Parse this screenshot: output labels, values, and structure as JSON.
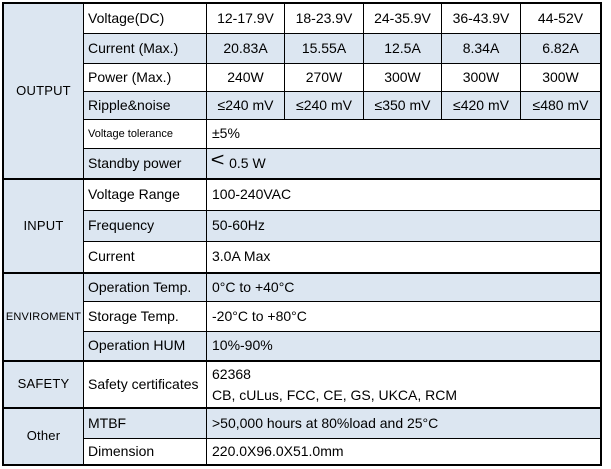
{
  "colors": {
    "fill_blue": "#dce6f1",
    "border": "#000000",
    "text": "#000000",
    "background": "#ffffff"
  },
  "table": {
    "sections": [
      {
        "title": "OUTPUT",
        "rows": [
          {
            "label": "Voltage(DC)",
            "values": [
              "12-17.9V",
              "18-23.9V",
              "24-35.9V",
              "36-43.9V",
              "44-52V"
            ]
          },
          {
            "label": "Current (Max.)",
            "values": [
              "20.83A",
              "15.55A",
              "12.5A",
              "8.34A",
              "6.82A"
            ]
          },
          {
            "label": "Power (Max.)",
            "values": [
              "240W",
              "270W",
              "300W",
              "300W",
              "300W"
            ]
          },
          {
            "label": "Ripple&noise",
            "values": [
              "≤240 mV",
              "≤240 mV",
              "≤350 mV",
              "≤420 mV",
              "≤480 mV"
            ]
          },
          {
            "label": "Voltage tolerance",
            "value": "±5%"
          },
          {
            "label": "Standby power",
            "value_symbol": "<",
            "value": "0.5 W"
          }
        ]
      },
      {
        "title": "INPUT",
        "rows": [
          {
            "label": "Voltage Range",
            "value": "100-240VAC"
          },
          {
            "label": "Frequency",
            "value": "50-60Hz"
          },
          {
            "label": "Current",
            "value": "3.0A Max"
          }
        ]
      },
      {
        "title": "ENVIROMENT",
        "rows": [
          {
            "label": "Operation Temp.",
            "value": "0°C to +40°C"
          },
          {
            "label": "Storage Temp.",
            "value": "-20°C to +80°C"
          },
          {
            "label": "Operation HUM",
            "value": "10%-90%"
          }
        ]
      },
      {
        "title": "SAFETY",
        "rows": [
          {
            "label": "Safety certificates",
            "value_line1": "62368",
            "value_line2": "CB, cULus, FCC, CE, GS, UKCA, RCM"
          }
        ]
      },
      {
        "title": "Other",
        "rows": [
          {
            "label": "MTBF",
            "value": ">50,000 hours at 80%load and 25°C"
          },
          {
            "label": "Dimension",
            "value": "220.0X96.0X51.0mm"
          }
        ]
      }
    ]
  }
}
